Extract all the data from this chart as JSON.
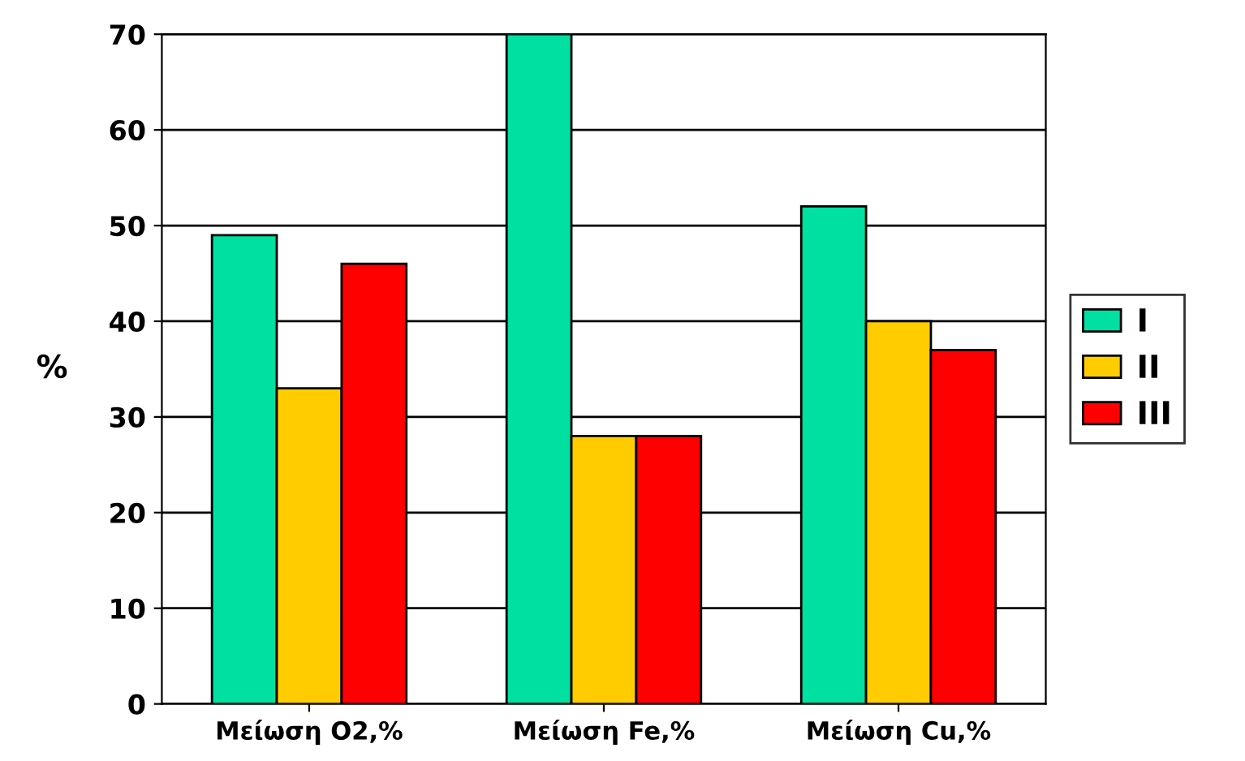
{
  "chart_data": {
    "type": "bar",
    "ylabel": "%",
    "categories": [
      "Μείωση O2,%",
      "Μείωση Fe,%",
      "Μείωση Cu,%"
    ],
    "series": [
      {
        "name": "I",
        "color": "#00e0a0",
        "values": [
          49,
          70,
          52
        ]
      },
      {
        "name": "II",
        "color": "#ffcc00",
        "values": [
          33,
          28,
          40
        ]
      },
      {
        "name": "III",
        "color": "#ff0000",
        "values": [
          46,
          28,
          37
        ]
      }
    ],
    "ylim": [
      0,
      70
    ],
    "yticks": [
      0,
      10,
      20,
      30,
      40,
      50,
      60,
      70
    ],
    "grid": "y",
    "legend": "right"
  }
}
